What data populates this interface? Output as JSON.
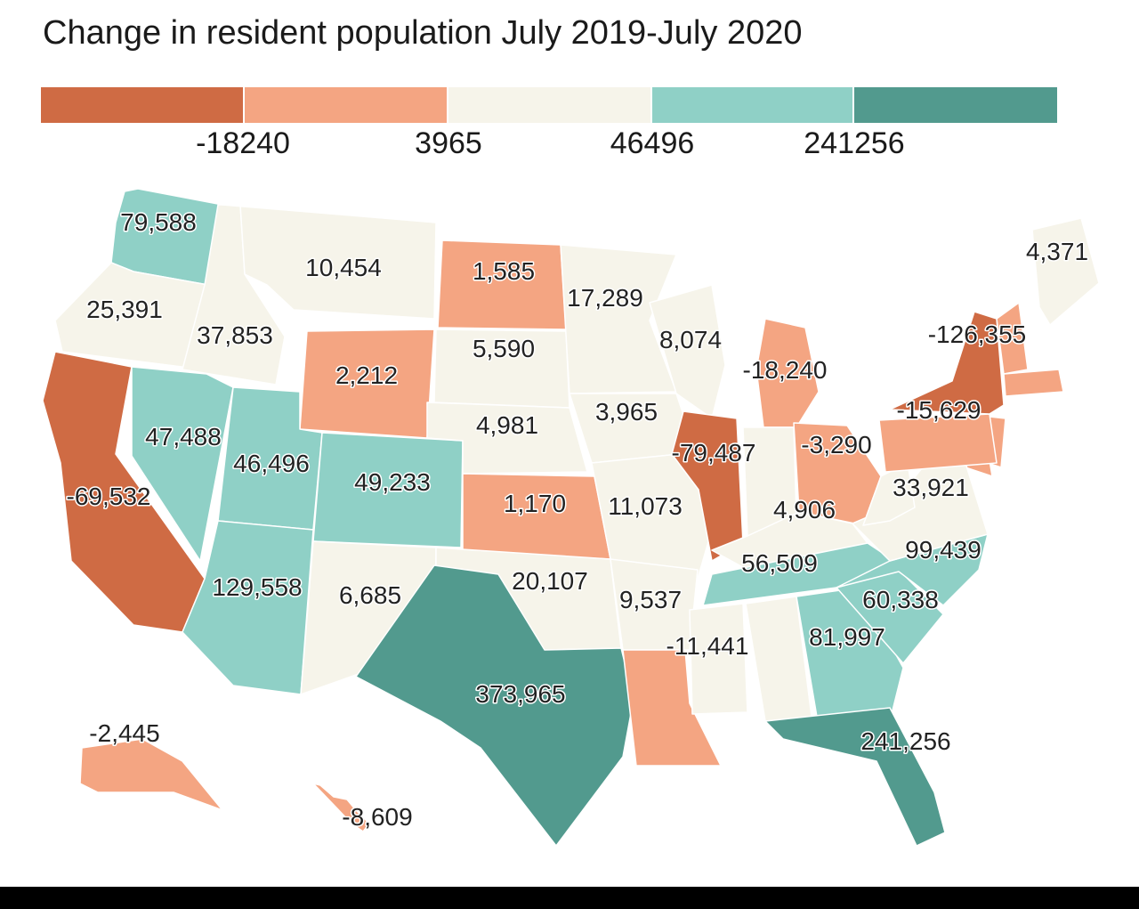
{
  "title": "Change in resident population July 2019-July 2020",
  "legend": {
    "bins": [
      {
        "color": "#cf6b44"
      },
      {
        "color": "#f4a582"
      },
      {
        "color": "#f6f4ea"
      },
      {
        "color": "#8fd0c6"
      },
      {
        "color": "#529a8e"
      }
    ],
    "thresholds": [
      "-18240",
      "3965",
      "46496",
      "241256"
    ]
  },
  "map_data": {
    "unit": "persons",
    "regions": [
      {
        "state": "Washington",
        "value": 79588,
        "label": "79,588"
      },
      {
        "state": "Oregon",
        "value": 25391,
        "label": "25,391"
      },
      {
        "state": "California",
        "value": -69532,
        "label": "-69,532"
      },
      {
        "state": "Idaho",
        "value": 37853,
        "label": "37,853"
      },
      {
        "state": "Nevada",
        "value": 47488,
        "label": "47,488"
      },
      {
        "state": "Montana",
        "value": 10454,
        "label": "10,454"
      },
      {
        "state": "Wyoming",
        "value": 2212,
        "label": "2,212"
      },
      {
        "state": "Utah",
        "value": 46496,
        "label": "46,496"
      },
      {
        "state": "Colorado",
        "value": 49233,
        "label": "49,233"
      },
      {
        "state": "Arizona",
        "value": 129558,
        "label": "129,558"
      },
      {
        "state": "New Mexico",
        "value": 6685,
        "label": "6,685"
      },
      {
        "state": "North Dakota",
        "value": 1585,
        "label": "1,585"
      },
      {
        "state": "South Dakota",
        "value": 5590,
        "label": "5,590"
      },
      {
        "state": "Nebraska",
        "value": 4981,
        "label": "4,981"
      },
      {
        "state": "Kansas",
        "value": 1170,
        "label": "1,170"
      },
      {
        "state": "Oklahoma",
        "value": 20107,
        "label": "20,107"
      },
      {
        "state": "Texas",
        "value": 373965,
        "label": "373,965"
      },
      {
        "state": "Minnesota",
        "value": 17289,
        "label": "17,289"
      },
      {
        "state": "Iowa",
        "value": 3965,
        "label": "3,965"
      },
      {
        "state": "Missouri",
        "value": 11073,
        "label": "11,073"
      },
      {
        "state": "Arkansas",
        "value": 9537,
        "label": "9,537"
      },
      {
        "state": "Louisiana",
        "value": -11441,
        "label": "-11,441"
      },
      {
        "state": "Wisconsin",
        "value": 8074,
        "label": "8,074"
      },
      {
        "state": "Illinois",
        "value": -79487,
        "label": "-79,487"
      },
      {
        "state": "Michigan",
        "value": -18240,
        "label": "-18,240"
      },
      {
        "state": "Indiana",
        "value": 4906,
        "label": "4,906"
      },
      {
        "state": "Ohio",
        "value": -3290,
        "label": "-3,290"
      },
      {
        "state": "Kentucky",
        "value": null,
        "label": ""
      },
      {
        "state": "Tennessee",
        "value": 56509,
        "label": "56,509"
      },
      {
        "state": "Mississippi",
        "value": null,
        "label": ""
      },
      {
        "state": "Alabama",
        "value": null,
        "label": ""
      },
      {
        "state": "Georgia",
        "value": 81997,
        "label": "81,997"
      },
      {
        "state": "Florida",
        "value": 241256,
        "label": "241,256"
      },
      {
        "state": "South Carolina",
        "value": 60338,
        "label": "60,338"
      },
      {
        "state": "North Carolina",
        "value": 99439,
        "label": "99,439"
      },
      {
        "state": "Virginia",
        "value": 33921,
        "label": "33,921"
      },
      {
        "state": "West Virginia",
        "value": null,
        "label": ""
      },
      {
        "state": "Pennsylvania",
        "value": -15629,
        "label": "-15,629"
      },
      {
        "state": "New York",
        "value": -126355,
        "label": "-126,355"
      },
      {
        "state": "Maine",
        "value": 4371,
        "label": "4,371"
      },
      {
        "state": "Alaska",
        "value": -2445,
        "label": "-2,445"
      },
      {
        "state": "Hawaii",
        "value": -8609,
        "label": "-8,609"
      }
    ]
  }
}
